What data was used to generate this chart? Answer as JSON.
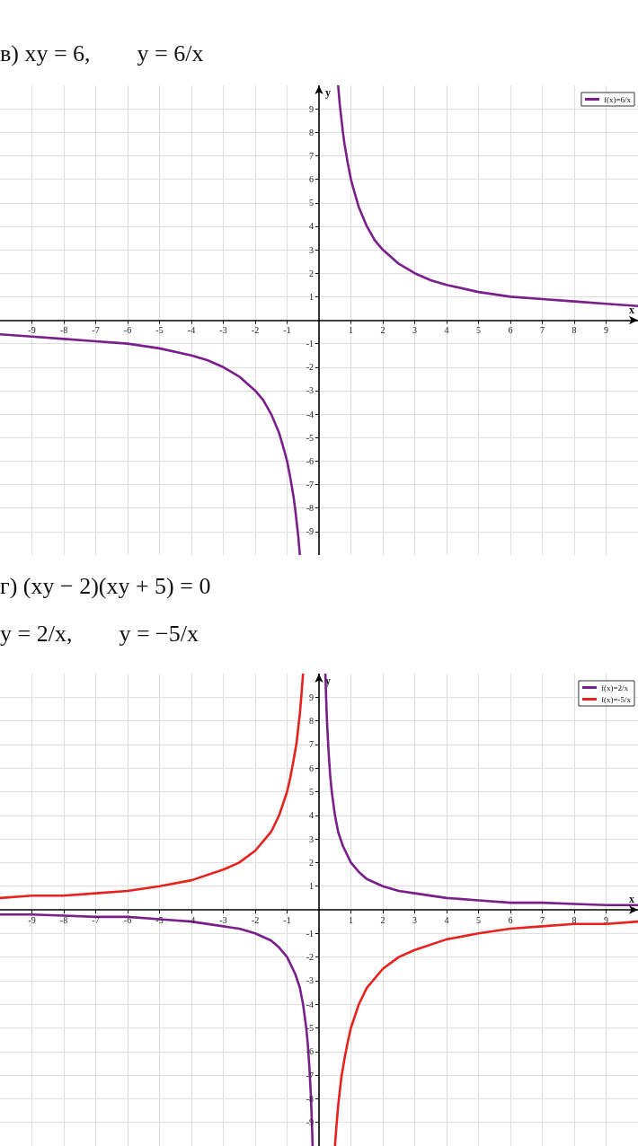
{
  "chart_data": [
    {
      "type": "line",
      "title": "в) xy = 6,        y = 6/x",
      "xlabel": "x",
      "ylabel": "y",
      "xlim": [
        -10,
        10
      ],
      "ylim": [
        -10,
        10
      ],
      "xticks": [
        -9,
        -8,
        -7,
        -6,
        -5,
        -4,
        -3,
        -2,
        -1,
        1,
        2,
        3,
        4,
        5,
        6,
        7,
        8,
        9
      ],
      "yticks": [
        -9,
        -8,
        -7,
        -6,
        -5,
        -4,
        -3,
        -2,
        -1,
        1,
        2,
        3,
        4,
        5,
        6,
        7,
        8,
        9
      ],
      "grid": true,
      "legend": "top right",
      "marker": "none",
      "series": [
        {
          "name": "f(x)=6/x",
          "color": "#7a1e8c",
          "x": [
            -10,
            -9,
            -8,
            -7,
            -6,
            -5,
            -4,
            -3.5,
            -3,
            -2.5,
            -2,
            -1.75,
            -1.5,
            -1.25,
            -1.1,
            -1,
            -0.9,
            -0.8,
            -0.75,
            -0.7,
            -0.65,
            -0.6,
            0,
            0.6,
            0.65,
            0.7,
            0.75,
            0.8,
            0.9,
            1,
            1.1,
            1.25,
            1.5,
            1.75,
            2,
            2.5,
            3,
            3.5,
            4,
            5,
            6,
            7,
            8,
            9,
            10
          ],
          "values": [
            -0.6,
            -0.7,
            -0.8,
            -0.9,
            -1,
            -1.2,
            -1.5,
            -1.7,
            -2,
            -2.4,
            -3,
            -3.4,
            -4,
            -4.8,
            -5.5,
            -6,
            -6.7,
            -7.5,
            -8,
            -8.6,
            -9.2,
            -10,
            null,
            10,
            9.2,
            8.6,
            8,
            7.5,
            6.7,
            6,
            5.5,
            4.8,
            4,
            3.4,
            3,
            2.4,
            2,
            1.7,
            1.5,
            1.2,
            1,
            0.9,
            0.8,
            0.7,
            0.6
          ]
        }
      ]
    },
    {
      "type": "line",
      "title": "г) (xy − 2)(xy + 5) = 0",
      "subtitle": "y = 2/x,        y = −5/x",
      "xlabel": "x",
      "ylabel": "y",
      "xlim": [
        -10,
        10
      ],
      "ylim": [
        -10,
        10
      ],
      "xticks": [
        -9,
        -8,
        -7,
        -6,
        -5,
        -4,
        -3,
        -2,
        -1,
        1,
        2,
        3,
        4,
        5,
        6,
        7,
        8,
        9
      ],
      "yticks": [
        -9,
        -8,
        -7,
        -6,
        -5,
        -4,
        -3,
        -2,
        -1,
        1,
        2,
        3,
        4,
        5,
        6,
        7,
        8,
        9
      ],
      "grid": true,
      "legend": "top right",
      "marker": "none",
      "series": [
        {
          "name": "f(x)=2/x",
          "color": "#7a1e8c",
          "x": [
            -10,
            -9,
            -8,
            -7,
            -6,
            -5,
            -4,
            -3,
            -2.5,
            -2,
            -1.5,
            -1.25,
            -1,
            -0.75,
            -0.6,
            -0.5,
            -0.4,
            -0.35,
            -0.3,
            -0.25,
            -0.22,
            -0.2,
            0,
            0.2,
            0.22,
            0.25,
            0.3,
            0.35,
            0.4,
            0.5,
            0.6,
            0.75,
            1,
            1.25,
            1.5,
            2,
            2.5,
            3,
            4,
            5,
            6,
            7,
            8,
            9,
            10
          ],
          "values": [
            -0.2,
            -0.2,
            -0.25,
            -0.3,
            -0.3,
            -0.4,
            -0.5,
            -0.7,
            -0.8,
            -1,
            -1.3,
            -1.6,
            -2,
            -2.7,
            -3.3,
            -4,
            -5,
            -5.7,
            -6.7,
            -8,
            -9.1,
            -10,
            null,
            10,
            9.1,
            8,
            6.7,
            5.7,
            5,
            4,
            3.3,
            2.7,
            2,
            1.6,
            1.3,
            1,
            0.8,
            0.7,
            0.5,
            0.4,
            0.3,
            0.3,
            0.25,
            0.2,
            0.2
          ]
        },
        {
          "name": "f(x)=-5/x",
          "color": "#e8211c",
          "x": [
            -10,
            -9,
            -8,
            -7,
            -6,
            -5,
            -4,
            -3,
            -2.5,
            -2,
            -1.5,
            -1.25,
            -1,
            -0.9,
            -0.8,
            -0.7,
            -0.6,
            -0.55,
            -0.5,
            0,
            0.5,
            0.55,
            0.6,
            0.7,
            0.8,
            0.9,
            1,
            1.25,
            1.5,
            2,
            2.5,
            3,
            4,
            5,
            6,
            7,
            8,
            9,
            10
          ],
          "values": [
            0.5,
            0.6,
            0.6,
            0.7,
            0.8,
            1,
            1.25,
            1.7,
            2,
            2.5,
            3.3,
            4,
            5,
            5.6,
            6.3,
            7.1,
            8.3,
            9.1,
            10,
            null,
            -10,
            -9.1,
            -8.3,
            -7.1,
            -6.3,
            -5.6,
            -5,
            -4,
            -3.3,
            -2.5,
            -2,
            -1.7,
            -1.25,
            -1,
            -0.8,
            -0.7,
            -0.6,
            -0.6,
            -0.5
          ]
        }
      ]
    }
  ]
}
